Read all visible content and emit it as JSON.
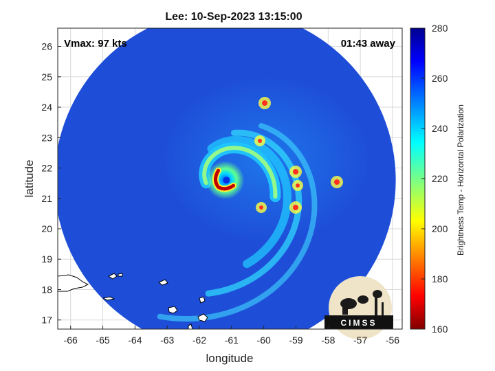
{
  "chart_data": {
    "type": "heatmap",
    "title": "Lee: 10-Sep-2023 13:15:00",
    "annotations": {
      "vmax": "Vmax: 97 kts",
      "time_away": "01:43 away"
    },
    "xlabel": "longitude",
    "ylabel": "latitude",
    "xlim": [
      -66.4,
      -55.7
    ],
    "ylim": [
      16.7,
      26.6
    ],
    "x_ticks": [
      -66,
      -65,
      -64,
      -63,
      -62,
      -61,
      -60,
      -59,
      -58,
      -57,
      -56
    ],
    "y_ticks": [
      17,
      18,
      19,
      20,
      21,
      22,
      23,
      24,
      25,
      26
    ],
    "grid": true,
    "colorbar": {
      "label": "Brightness Temp - Horizontal Polarization",
      "range": [
        160,
        280
      ],
      "ticks": [
        160,
        180,
        200,
        220,
        240,
        260,
        280
      ],
      "colormap": "jet"
    },
    "swath": {
      "center_lon": -61.2,
      "center_lat": 21.6,
      "radius_deg": 5.3
    },
    "storm_center": {
      "lon": -61.2,
      "lat": 21.6,
      "min_temp": 165
    }
  },
  "logo": {
    "text": "CIMSS"
  },
  "colors": {
    "background_field": "#1e4ed8",
    "colorbar_top": "#00008f",
    "colorbar_bottom": "#800000"
  }
}
